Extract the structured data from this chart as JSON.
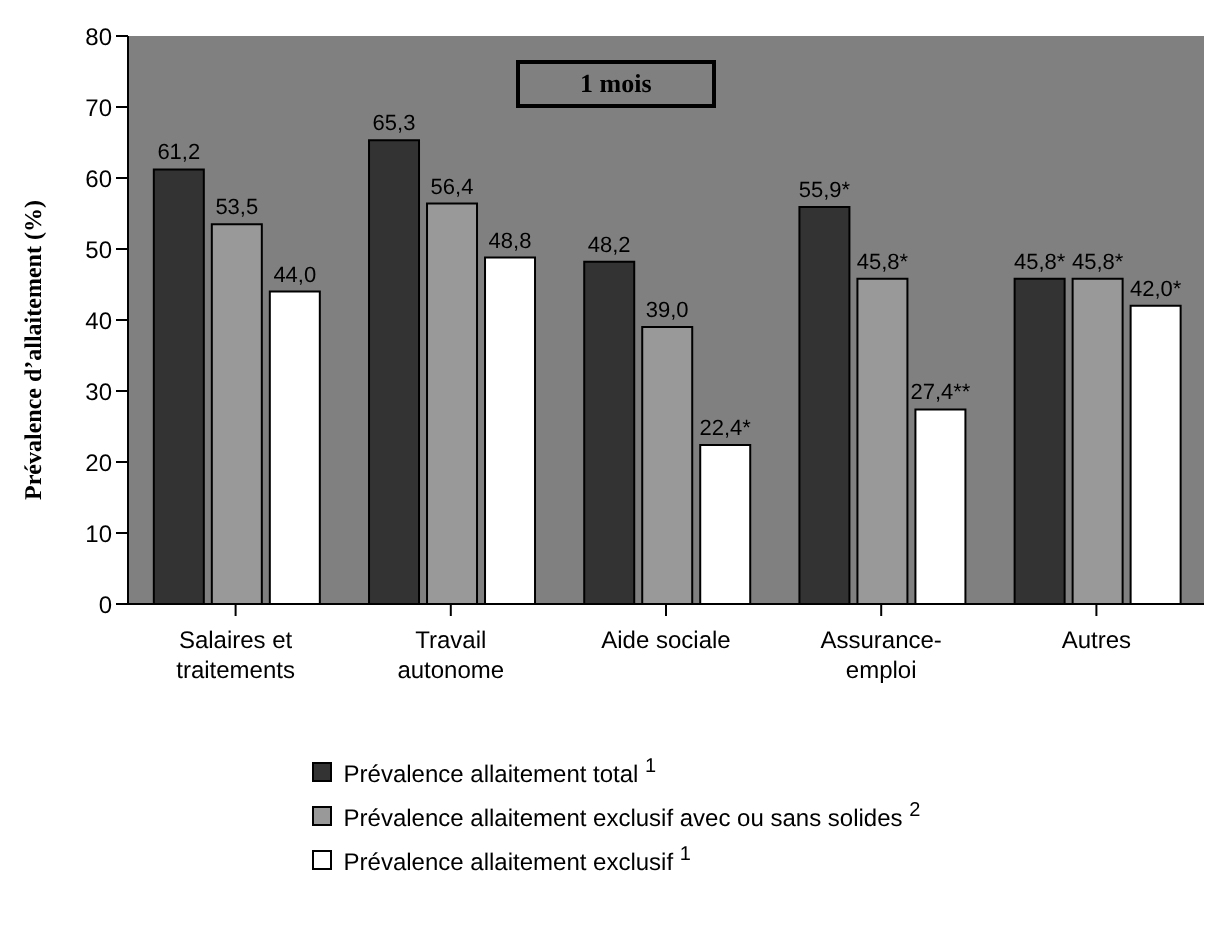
{
  "chart_data": {
    "type": "bar",
    "ylabel": "Prévalence d’allaitement (%)",
    "annotations": [
      "1 mois"
    ],
    "categories": [
      "Salaires et traitements",
      "Travail autonome",
      "Aide sociale",
      "Assurance-emploi",
      "Autres"
    ],
    "series": [
      {
        "name": "Prévalence allaitement total $^{1}$",
        "color": "#333333",
        "values": [
          61.2,
          65.3,
          48.2,
          55.9,
          45.8
        ],
        "value_labels": [
          "61,2",
          "65,3",
          "48,2",
          "55,9*",
          "45,8*"
        ]
      },
      {
        "name": "Prévalence allaitement exclusif avec ou sans solides $^{2}$",
        "color": "#999999",
        "values": [
          53.5,
          56.4,
          39.0,
          45.8,
          45.8
        ],
        "value_labels": [
          "53,5",
          "56,4",
          "39,0",
          "45,8*",
          "45,8*"
        ]
      },
      {
        "name": "Prévalence allaitement exclusif $^{1}$",
        "color": "#ffffff",
        "values": [
          44.0,
          48.8,
          22.4,
          27.4,
          42.0
        ],
        "value_labels": [
          "44,0",
          "48,8",
          "22,4*",
          "27,4**",
          "42,0*"
        ]
      }
    ],
    "ylim": [
      0,
      80
    ],
    "yticks": [
      0,
      10,
      20,
      30,
      40,
      50,
      60,
      70,
      80
    ],
    "grid": false,
    "legend": "bottom"
  }
}
